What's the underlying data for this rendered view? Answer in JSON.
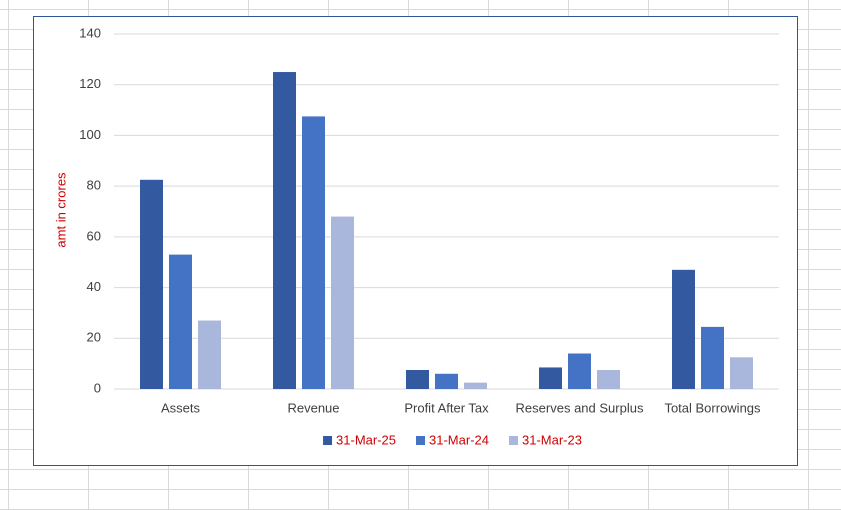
{
  "chart_data": {
    "type": "bar",
    "y_label": "amt in crores",
    "categories": [
      "Assets",
      "Revenue",
      "Profit After Tax",
      "Reserves and Surplus",
      "Total Borrowings"
    ],
    "series": [
      {
        "name": "31-Mar-25",
        "color": "#335aa0",
        "values": [
          82.5,
          125,
          7.5,
          8.5,
          47
        ]
      },
      {
        "name": "31-Mar-24",
        "color": "#4472c4",
        "values": [
          53,
          107.5,
          6,
          14,
          24.5
        ]
      },
      {
        "name": "31-Mar-23",
        "color": "#a9b7dd",
        "values": [
          27,
          68,
          2.5,
          7.5,
          12.5
        ]
      }
    ],
    "ylim": [
      0,
      140
    ],
    "yticks": [
      0,
      20,
      40,
      60,
      80,
      100,
      120,
      140
    ],
    "grid": true
  }
}
